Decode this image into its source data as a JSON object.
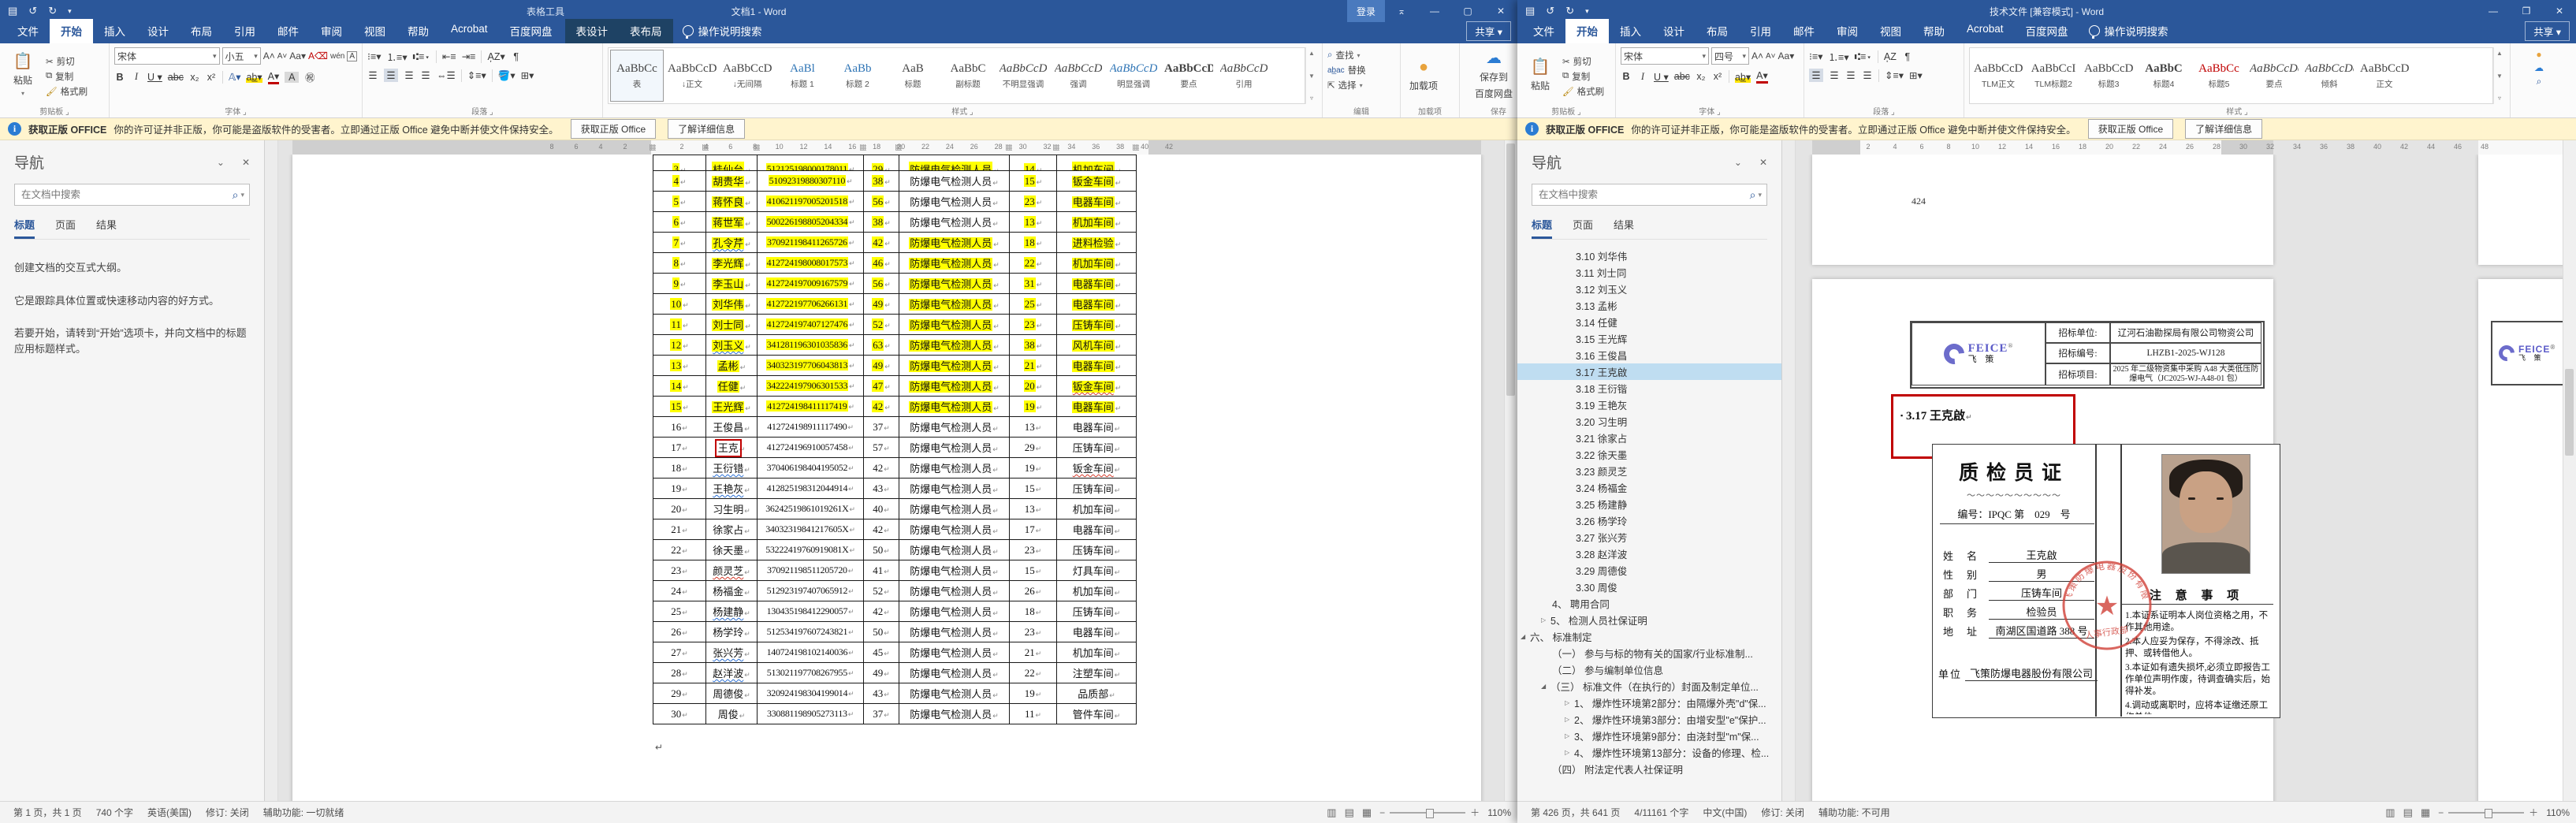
{
  "shared": {
    "notif": {
      "bold": "获取正版 OFFICE",
      "text": "你的许可证并非正版，你可能是盗版软件的受害者。立即通过正版 Office 避免中断并使文件保持安全。",
      "btn_get": "获取正版 Office",
      "btn_learn": "了解详细信息"
    },
    "tellme": "操作说明搜索",
    "share": "共享",
    "signin": "登录"
  },
  "left": {
    "title_context": "表格工具",
    "title": "文档1 - Word",
    "tabs": [
      "文件",
      "开始",
      "插入",
      "设计",
      "布局",
      "引用",
      "邮件",
      "审阅",
      "视图",
      "帮助",
      "Acrobat",
      "百度网盘"
    ],
    "active_tab": "开始",
    "context_tabs": [
      "表设计",
      "表布局"
    ],
    "ribbon": {
      "paste": "粘贴",
      "cut": "剪切",
      "copy": "复制",
      "format_painter": "格式刷",
      "clipboard_group": "剪贴板",
      "font_name": "宋体",
      "font_size": "小五",
      "font_group": "字体",
      "paragraph_group": "段落",
      "styles_group": "样式",
      "styles": [
        {
          "sample": "AaBbCc",
          "label": "表",
          "selected": true
        },
        {
          "sample": "AaBbCcD",
          "label": "↓正文"
        },
        {
          "sample": "AaBbCcD",
          "label": "↓无间隔"
        },
        {
          "sample": "AaBl",
          "label": "标题 1",
          "color": "#2E74B5"
        },
        {
          "sample": "AaBb",
          "label": "标题 2",
          "color": "#2E74B5"
        },
        {
          "sample": "AaB",
          "label": "标题"
        },
        {
          "sample": "AaBbC",
          "label": "副标题"
        },
        {
          "sample": "AaBbCcD",
          "label": "不明显强调",
          "italic": true
        },
        {
          "sample": "AaBbCcD",
          "label": "强调",
          "italic": true
        },
        {
          "sample": "AaBbCcD",
          "label": "明显强调",
          "italic": true,
          "color": "#2E74B5"
        },
        {
          "sample": "AaBbCcD",
          "label": "要点",
          "bold": true
        },
        {
          "sample": "AaBbCcD",
          "label": "引用",
          "italic": true
        }
      ],
      "find": "查找",
      "replace": "替换",
      "select": "选择",
      "editing_group": "编辑",
      "addins": "加载项",
      "addins_group": "加载项",
      "baidu_line1": "保存到",
      "baidu_line2": "百度网盘",
      "baidu_group": "保存"
    },
    "nav": {
      "title": "导航",
      "search_placeholder": "在文档中搜索",
      "tabs": [
        "标题",
        "页面",
        "结果"
      ],
      "active_tab": "标题",
      "body": [
        "创建文档的交互式大纲。",
        "它是跟踪具体位置或快速移动内容的好方式。",
        "若要开始，请转到“开始”选项卡，并向文档中的标题应用标题样式。"
      ]
    },
    "ruler_neg": [
      "8",
      "6",
      "4",
      "2"
    ],
    "ruler_pos": [
      "2",
      "4",
      "6",
      "8",
      "10",
      "12",
      "14",
      "16",
      "18",
      "20",
      "22",
      "24",
      "26",
      "28",
      "30",
      "32",
      "34",
      "36",
      "38",
      "40",
      "42"
    ],
    "table": {
      "job_text": "防爆电气检测人员",
      "rows": [
        {
          "n": "3",
          "name": "桂仙台",
          "id": "512125198000178011",
          "age": "29",
          "cnt": "14",
          "dept": "机加车间",
          "hl": true,
          "job_hl": true,
          "partial": true
        },
        {
          "n": "4",
          "name": "胡贵华",
          "id": "51092319880307110",
          "age": "38",
          "cnt": "15",
          "dept": "钣金车间",
          "hl": true
        },
        {
          "n": "5",
          "name": "蒋怀良",
          "id": "410621197005201518",
          "age": "56",
          "cnt": "23",
          "dept": "电器车间",
          "hl": true
        },
        {
          "n": "6",
          "name": "蒋世军",
          "id": "500226198805204334",
          "age": "38",
          "cnt": "13",
          "dept": "机加车间",
          "hl": true
        },
        {
          "n": "7",
          "name": "孔令芹",
          "id": "370921198411265726",
          "age": "42",
          "cnt": "18",
          "dept": "进料检验",
          "hl": true,
          "job_hl": true,
          "name_wavy": "blue"
        },
        {
          "n": "8",
          "name": "李光辉",
          "id": "412724198008017573",
          "age": "46",
          "cnt": "22",
          "dept": "机加车间",
          "hl": true,
          "job_hl": true
        },
        {
          "n": "9",
          "name": "李玉山",
          "id": "412724197009167579",
          "age": "56",
          "cnt": "31",
          "dept": "电器车间",
          "hl": true,
          "job_hl": true
        },
        {
          "n": "10",
          "name": "刘华伟",
          "id": "412722197706266131",
          "age": "49",
          "cnt": "25",
          "dept": "电器车间",
          "hl": true,
          "job_hl": true
        },
        {
          "n": "11",
          "name": "刘士同",
          "id": "412724197407127476",
          "age": "52",
          "cnt": "23",
          "dept": "压铸车间",
          "hl": true,
          "job_hl": true
        },
        {
          "n": "12",
          "name": "刘玉义",
          "id": "341281196301035836",
          "age": "63",
          "cnt": "38",
          "dept": "风机车间",
          "hl": true,
          "job_hl": true,
          "name_wavy": "blue"
        },
        {
          "n": "13",
          "name": "孟彬",
          "id": "340323197706043813",
          "age": "49",
          "cnt": "21",
          "dept": "电器车间",
          "hl": true,
          "job_hl": true
        },
        {
          "n": "14",
          "name": "任健",
          "id": "342224197906301533",
          "age": "47",
          "cnt": "20",
          "dept": "钣金车间",
          "hl": true,
          "job_hl": true,
          "dept_wavy": "red"
        },
        {
          "n": "15",
          "name": "王光辉",
          "id": "412724198411117419",
          "age": "42",
          "cnt": "19",
          "dept": "电器车间",
          "hl": true,
          "job_hl": true
        },
        {
          "n": "16",
          "name": "王俊昌",
          "id": "412724198911117490",
          "age": "37",
          "cnt": "13",
          "dept": "电器车间"
        },
        {
          "n": "17",
          "name": "王克",
          "id": "412724196910057458",
          "age": "57",
          "cnt": "29",
          "dept": "压铸车间",
          "redbox": true
        },
        {
          "n": "18",
          "name": "王衍错",
          "id": "370406198404195052",
          "age": "42",
          "cnt": "19",
          "dept": "钣金车间",
          "name_wavy": "blue",
          "dept_wavy": "red"
        },
        {
          "n": "19",
          "name": "王艳灰",
          "id": "412825198312044914",
          "age": "43",
          "cnt": "15",
          "dept": "压铸车间",
          "name_wavy": "blue"
        },
        {
          "n": "20",
          "name": "习生明",
          "id": "36242519861019261X",
          "age": "40",
          "cnt": "13",
          "dept": "机加车间"
        },
        {
          "n": "21",
          "name": "徐家占",
          "id": "34032319841217605X",
          "age": "42",
          "cnt": "17",
          "dept": "电器车间"
        },
        {
          "n": "22",
          "name": "徐天墨",
          "id": "53222419760919081X",
          "age": "50",
          "cnt": "23",
          "dept": "压铸车间"
        },
        {
          "n": "23",
          "name": "颜灵芝",
          "id": "370921198511205720",
          "age": "41",
          "cnt": "15",
          "dept": "灯具车间",
          "name_wavy": "red"
        },
        {
          "n": "24",
          "name": "杨福金",
          "id": "512923197407065912",
          "age": "52",
          "cnt": "26",
          "dept": "机加车间"
        },
        {
          "n": "25",
          "name": "杨建静",
          "id": "130435198412290057",
          "age": "42",
          "cnt": "18",
          "dept": "压铸车间",
          "name_wavy": "blue"
        },
        {
          "n": "26",
          "name": "杨学玲",
          "id": "512534197607243821",
          "age": "50",
          "cnt": "23",
          "dept": "电器车间"
        },
        {
          "n": "27",
          "name": "张兴芳",
          "id": "140724198102140036",
          "age": "45",
          "cnt": "21",
          "dept": "机加车间",
          "name_wavy": "blue"
        },
        {
          "n": "28",
          "name": "赵洋波",
          "id": "513021197708267955",
          "age": "49",
          "cnt": "22",
          "dept": "注塑车间",
          "name_wavy": "blue"
        },
        {
          "n": "29",
          "name": "周德俊",
          "id": "320924198304199014",
          "age": "43",
          "cnt": "19",
          "dept": "品质部"
        },
        {
          "n": "30",
          "name": "周俊",
          "id": "330881198905273113",
          "age": "37",
          "cnt": "11",
          "dept": "管件车间"
        }
      ]
    },
    "status": {
      "page": "第 1 页，共 1 页",
      "words": "740 个字",
      "lang": "英语(美国)",
      "track": "修订: 关闭",
      "access": "辅助功能: 一切就绪",
      "zoom": "110%"
    }
  },
  "right": {
    "title": "技术文件 [兼容模式] - Word",
    "tabs": [
      "文件",
      "开始",
      "插入",
      "设计",
      "布局",
      "引用",
      "邮件",
      "审阅",
      "视图",
      "帮助",
      "Acrobat",
      "百度网盘"
    ],
    "active_tab": "开始",
    "ribbon": {
      "paste": "粘贴",
      "cut": "剪切",
      "copy": "复制",
      "format_painter": "格式刷",
      "clipboard_group": "剪贴板",
      "font_name": "宋体",
      "font_size": "四号",
      "font_group": "字体",
      "paragraph_group": "段落",
      "styles_group": "样式",
      "styles": [
        {
          "sample": "AaBbCcDd",
          "label": "TLM正文"
        },
        {
          "sample": "AaBbCcI",
          "label": "TLM标题2"
        },
        {
          "sample": "AaBbCcDd",
          "label": "标题3"
        },
        {
          "sample": "AaBbC",
          "label": "标题4",
          "bold": true
        },
        {
          "sample": "AaBbCc",
          "label": "标题5",
          "color": "#C00000"
        },
        {
          "sample": "AaBbCcDc",
          "label": "要点",
          "italic": true
        },
        {
          "sample": "AaBbCcDd",
          "label": "倾斜",
          "italic": true
        },
        {
          "sample": "AaBbCcD",
          "label": "正文"
        }
      ]
    },
    "nav": {
      "title": "导航",
      "search_placeholder": "在文档中搜索",
      "tabs": [
        "标题",
        "页面",
        "结果"
      ],
      "active_tab": "标题",
      "items": [
        {
          "text": "3.10  刘华伟",
          "lv": 3
        },
        {
          "text": "3.11  刘士同",
          "lv": 3
        },
        {
          "text": "3.12  刘玉义",
          "lv": 3
        },
        {
          "text": "3.13  孟彬",
          "lv": 3
        },
        {
          "text": "3.14  任健",
          "lv": 3
        },
        {
          "text": "3.15  王光辉",
          "lv": 3
        },
        {
          "text": "3.16  王俊昌",
          "lv": 3
        },
        {
          "text": "3.17  王克啟",
          "lv": 3,
          "selected": true
        },
        {
          "text": "3.18  王衍锴",
          "lv": 3
        },
        {
          "text": "3.19  王艳灰",
          "lv": 3
        },
        {
          "text": "3.20  习生明",
          "lv": 3
        },
        {
          "text": "3.21  徐家占",
          "lv": 3
        },
        {
          "text": "3.22  徐天墨",
          "lv": 3
        },
        {
          "text": "3.23  颜灵芝",
          "lv": 3
        },
        {
          "text": "3.24  杨福金",
          "lv": 3
        },
        {
          "text": "3.25  杨建静",
          "lv": 3
        },
        {
          "text": "3.26  杨学玲",
          "lv": 3
        },
        {
          "text": "3.27  张兴芳",
          "lv": 3
        },
        {
          "text": "3.28  赵洋波",
          "lv": 3
        },
        {
          "text": "3.29  周德俊",
          "lv": 3
        },
        {
          "text": "3.30  周俊",
          "lv": 3
        },
        {
          "text": "4、 聘用合同",
          "lv": 2
        },
        {
          "text": "5、 检测人员社保证明",
          "lv": 2,
          "arrow": "collapsed"
        },
        {
          "text": "六、 标准制定",
          "lv": 1,
          "arrow": "expanded"
        },
        {
          "text": "（一） 参与与标的物有关的国家/行业标准制...",
          "lv": 2
        },
        {
          "text": "（二） 参与编制单位信息",
          "lv": 2
        },
        {
          "text": "（三） 标准文件（在执行的）封面及制定单位...",
          "lv": 2,
          "arrow": "expanded"
        },
        {
          "text": "1、 爆炸性环境第2部分：由隔爆外壳\"d\"保...",
          "lv": 3,
          "arrow": "collapsed"
        },
        {
          "text": "2、 爆炸性环境第3部分：由增安型\"e\"保护...",
          "lv": 3,
          "arrow": "collapsed"
        },
        {
          "text": "3、 爆炸性环境第9部分：由浇封型\"m\"保...",
          "lv": 3,
          "arrow": "collapsed"
        },
        {
          "text": "4、 爆炸性环境第13部分：设备的修理、检...",
          "lv": 3,
          "arrow": "collapsed"
        },
        {
          "text": "（四） 附法定代表人社保证明",
          "lv": 2
        }
      ]
    },
    "ruler": [
      "2",
      "4",
      "6",
      "8",
      "10",
      "12",
      "14",
      "16",
      "18",
      "20",
      "22",
      "24",
      "26",
      "28",
      "30",
      "32",
      "34",
      "36",
      "38",
      "40",
      "42",
      "44",
      "46",
      "48"
    ],
    "doc": {
      "prev_page_number": "424",
      "header": {
        "logo_text": "FEICE",
        "logo_sub": "飞 策",
        "logo_reg": "®",
        "rows": [
          {
            "label": "招标单位:",
            "value": "辽河石油勘探局有限公司物资公司"
          },
          {
            "label": "招标编号:",
            "value": "LHZB1-2025-WJ128"
          },
          {
            "label": "招标项目:",
            "value": "2025 年二级物资集中采购 A48 大类低压防爆电气（JC2025-WJ-A48-01 包）"
          }
        ]
      },
      "heading_bullet": "▪",
      "heading": "3.17  王克啟",
      "certificate": {
        "title": "质检员证",
        "wavy": "～～～～～～～～～～",
        "serial": "编号：IPQC 第　029　号",
        "fields": [
          {
            "label": "姓　名",
            "value": "王克啟"
          },
          {
            "label": "性　别",
            "value": "男"
          },
          {
            "label": "部　门",
            "value": "压铸车间"
          },
          {
            "label": "职　务",
            "value": "检验员"
          },
          {
            "label": "地　址",
            "value": "南湖区国道路 388 号"
          }
        ],
        "unit_label": "单位",
        "unit_value": "飞策防爆电器股份有限公司",
        "notes_title": "注 意 事 项",
        "notes": [
          "1.本证系证明本人岗位资格之用，不作其他用途。",
          "2.本人应妥为保存，不得涂改、抵押、或转借他人。",
          "3.本证如有遗失损坏,必须立即报告工作单位声明作废，待调查确实后，始得补发。",
          "4.调动或离职时，应将本证缴还原工作单位。"
        ],
        "stamp_company": "飞策防爆电器股份有限公司",
        "stamp_dept": "人事行政部"
      }
    },
    "status": {
      "page": "第 426 页，共 641 页",
      "words": "4/11161 个字",
      "lang": "中文(中国)",
      "track": "修订: 关闭",
      "access": "辅助功能: 不可用",
      "zoom": "110%"
    }
  }
}
